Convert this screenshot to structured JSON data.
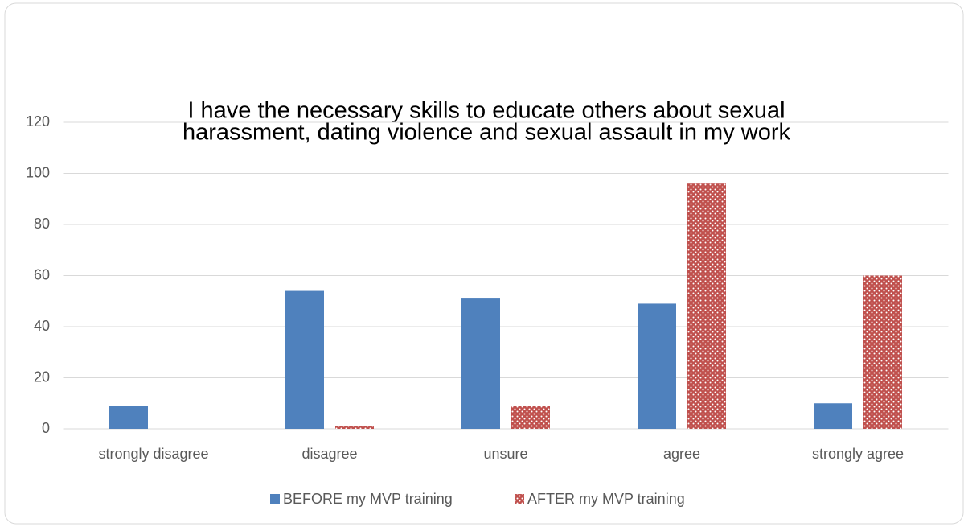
{
  "chart_data": {
    "type": "bar",
    "title": [
      "I have the necessary skills to educate others about sexual",
      "harassment, dating violence and sexual assault in my work"
    ],
    "categories": [
      "strongly disagree",
      "disagree",
      "unsure",
      "agree",
      "strongly agree"
    ],
    "series": [
      {
        "name": "BEFORE my MVP training",
        "color": "#4f81bd",
        "values": [
          9,
          54,
          51,
          49,
          10
        ]
      },
      {
        "name": "AFTER my MVP training",
        "color": "#c0504d",
        "pattern": "dots",
        "values": [
          0,
          1,
          9,
          96,
          60
        ]
      }
    ],
    "ylim": [
      0,
      120
    ],
    "yticks": [
      0,
      20,
      40,
      60,
      80,
      100,
      120
    ],
    "grid": true,
    "legend": "bottom"
  }
}
